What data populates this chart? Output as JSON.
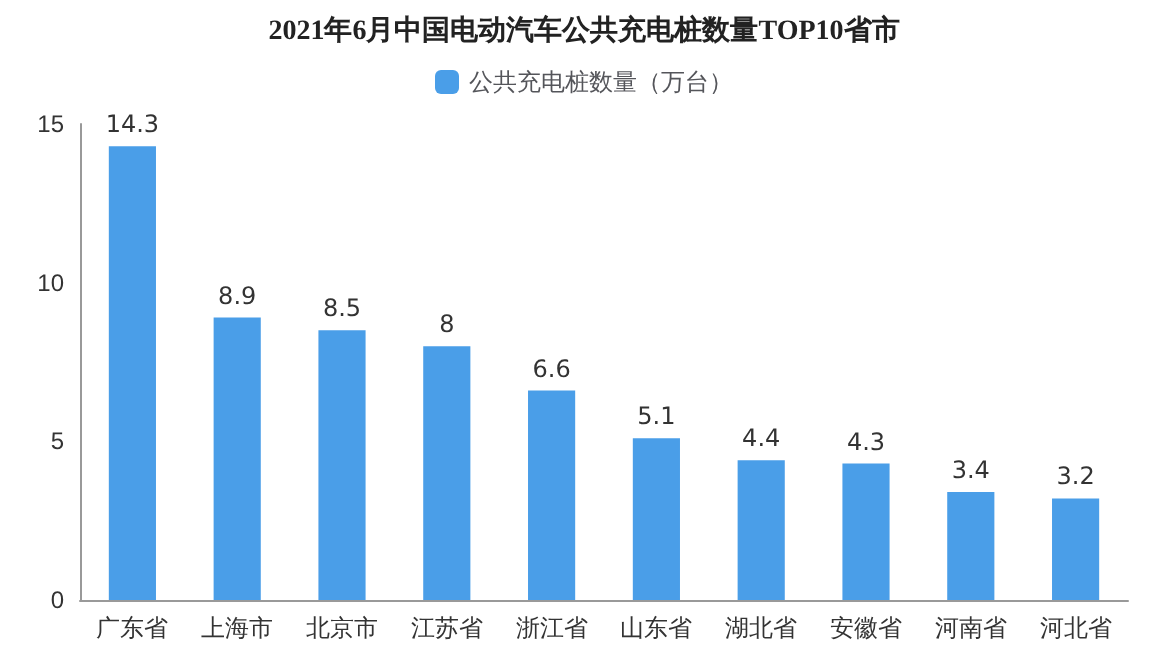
{
  "chart_data": {
    "type": "bar",
    "title": "2021年6月中国电动汽车公共充电桩数量TOP10省市",
    "categories": [
      "广东省",
      "上海市",
      "北京市",
      "江苏省",
      "浙江省",
      "山东省",
      "湖北省",
      "安徽省",
      "河南省",
      "河北省"
    ],
    "series": [
      {
        "name": "公共充电桩数量（万台）",
        "color": "#4a9ee8",
        "values": [
          14.3,
          8.9,
          8.5,
          8,
          6.6,
          5.1,
          4.4,
          4.3,
          3.4,
          3.2
        ]
      }
    ],
    "ylim": [
      0,
      15
    ],
    "yticks": [
      0,
      5,
      10,
      15
    ],
    "data_labels": true,
    "legend": "top",
    "grid": false
  }
}
